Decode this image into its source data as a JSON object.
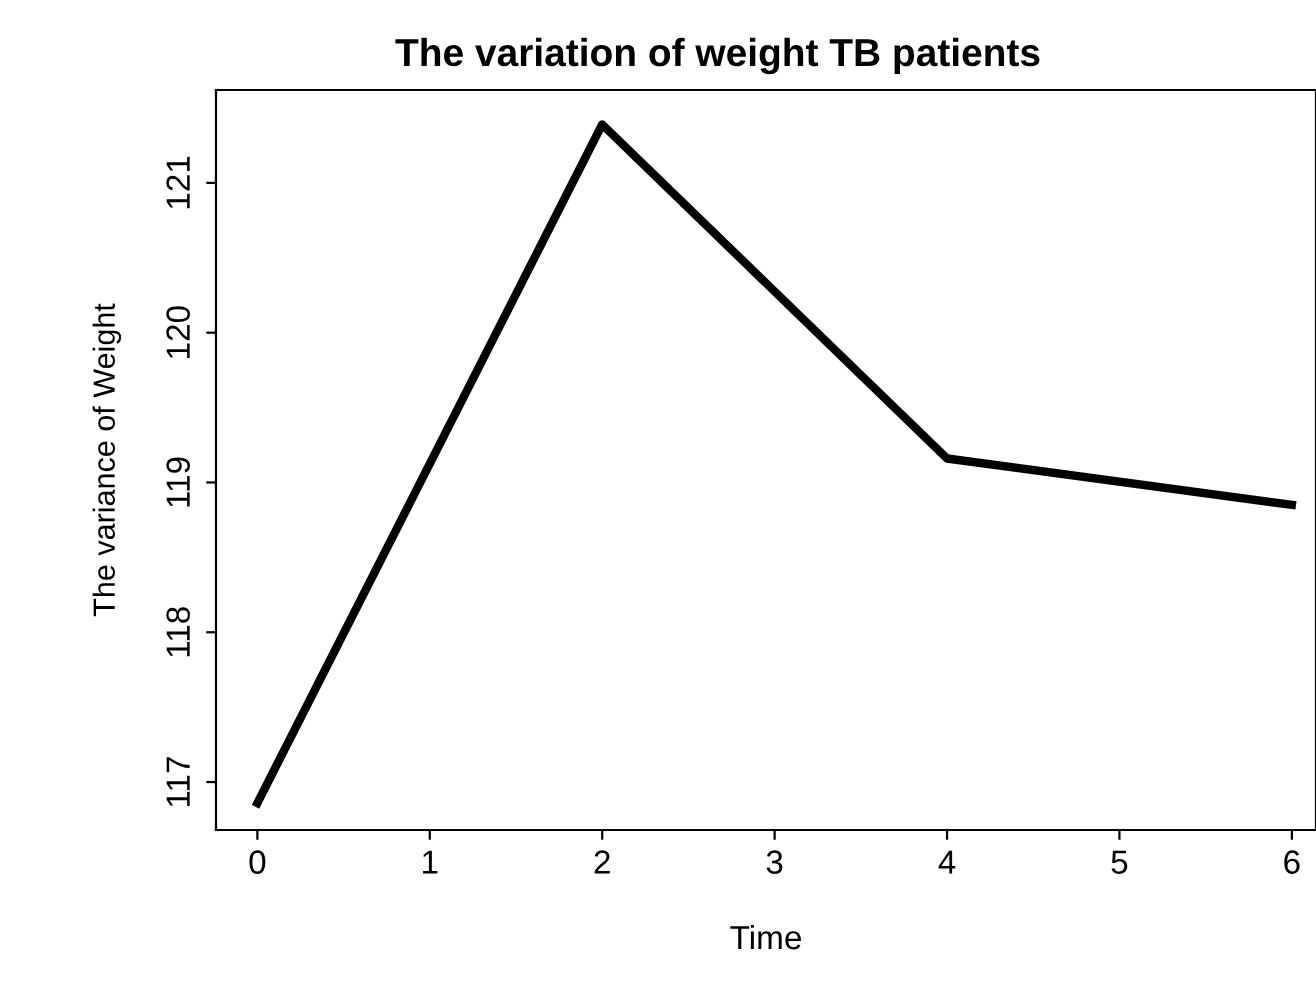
{
  "chart_data": {
    "type": "line",
    "title": "The variation of weight TB patients",
    "xlabel": "Time",
    "ylabel": "The variance of Weight",
    "x": [
      0,
      2,
      4,
      6
    ],
    "series": [
      {
        "color": "#000000",
        "values": [
          116.86,
          121.39,
          119.16,
          118.85
        ]
      }
    ],
    "xlim": [
      -0.24,
      6.14
    ],
    "xticks": [
      0,
      1,
      2,
      3,
      4,
      5,
      6
    ],
    "ylim": [
      116.68,
      121.62
    ],
    "yticks": [
      117,
      118,
      119,
      120,
      121
    ],
    "grid": false,
    "legend": false,
    "marker": "none",
    "line_style": "solid"
  }
}
